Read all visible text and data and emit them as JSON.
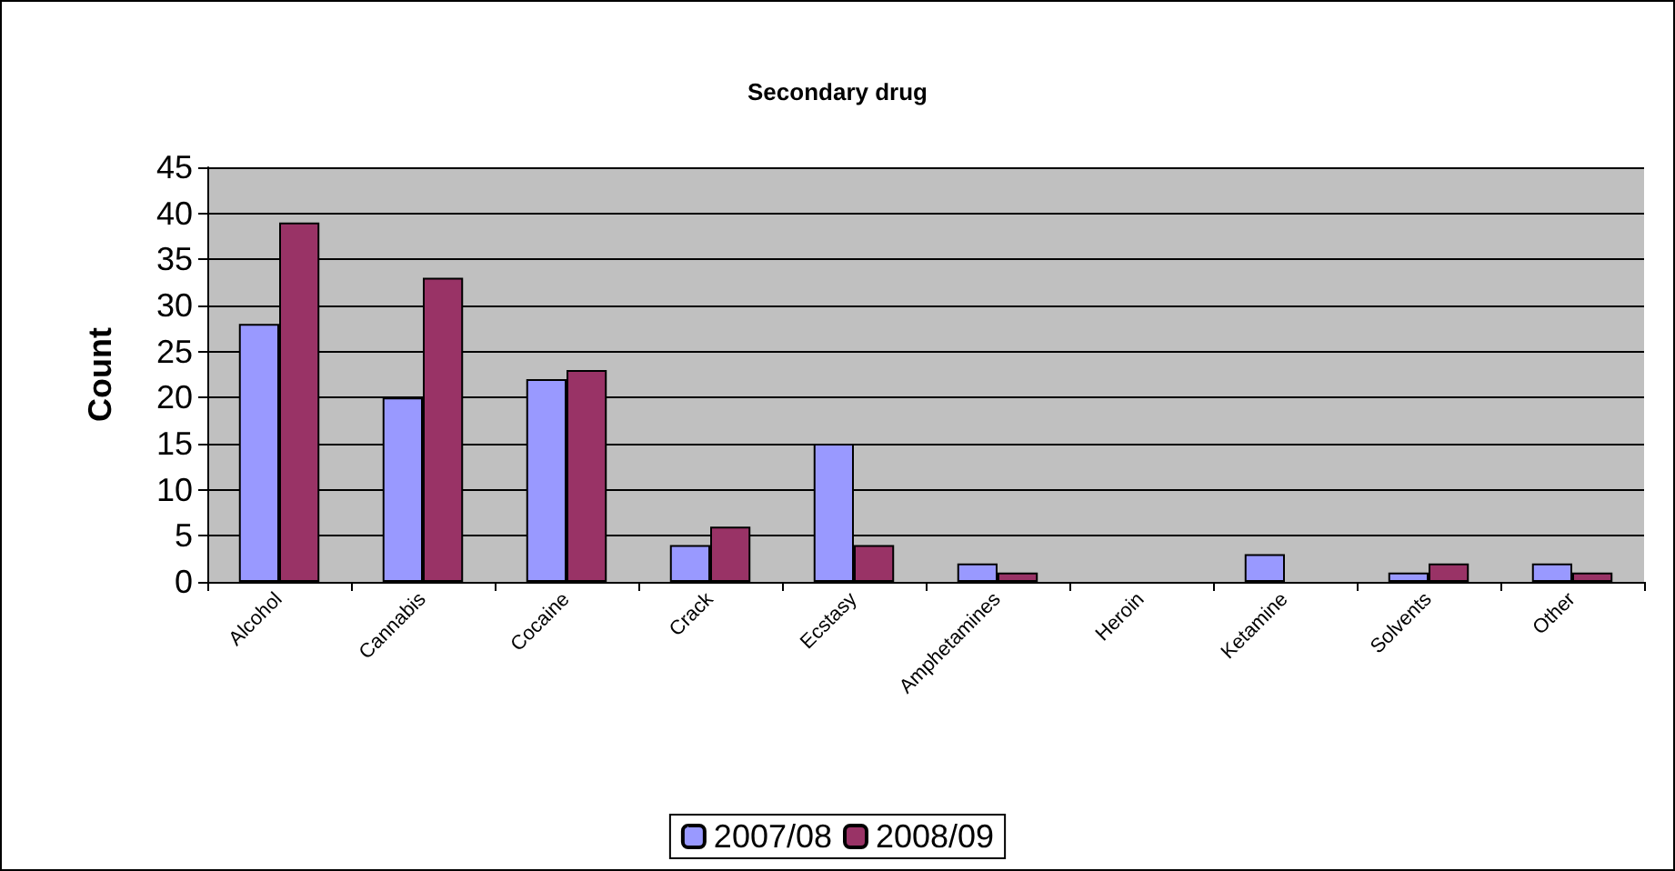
{
  "chart_data": {
    "type": "bar",
    "title": "Secondary drug",
    "ylabel": "Count",
    "categories": [
      "Alcohol",
      "Cannabis",
      "Cocaine",
      "Crack",
      "Ecstasy",
      "Amphetamines",
      "Heroin",
      "Ketamine",
      "Solvents",
      "Other"
    ],
    "series": [
      {
        "name": "2007/08",
        "color": "#9999ff",
        "values": [
          28,
          20,
          22,
          4,
          15,
          2,
          0,
          3,
          1,
          2
        ]
      },
      {
        "name": "2008/09",
        "color": "#993366",
        "values": [
          39,
          33,
          23,
          6,
          4,
          1,
          0,
          0,
          2,
          1
        ]
      }
    ],
    "ylim": [
      0,
      45
    ],
    "yticks": [
      0,
      5,
      10,
      15,
      20,
      25,
      30,
      35,
      40,
      45
    ],
    "grid": "y",
    "legend": "bottom"
  }
}
